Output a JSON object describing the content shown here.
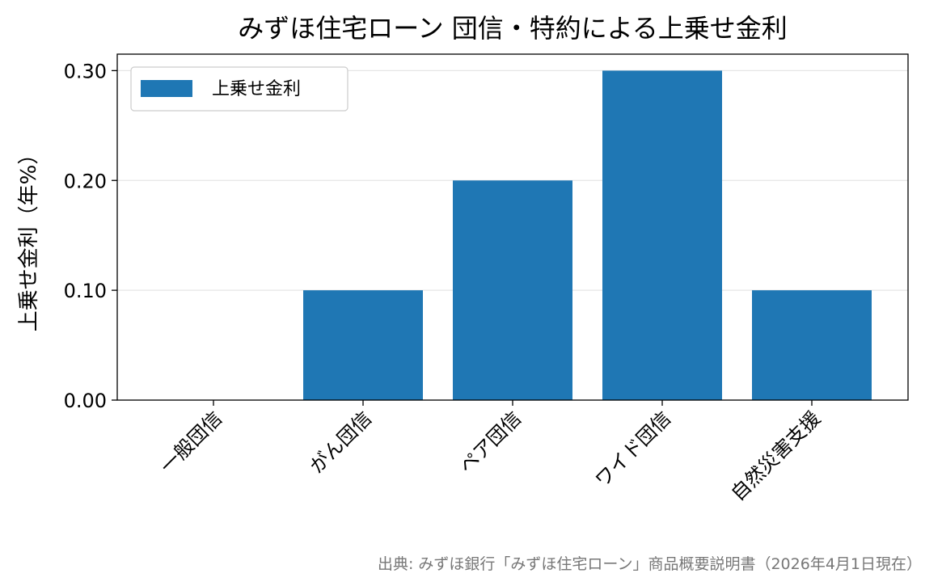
{
  "chart_data": {
    "type": "bar",
    "title": "みずほ住宅ローン 団信・特約による上乗せ金利",
    "xlabel": "",
    "ylabel": "上乗せ金利（年%）",
    "categories": [
      "一般団信",
      "がん団信",
      "ペア団信",
      "ワイド団信",
      "自然災害支援"
    ],
    "series": [
      {
        "name": "上乗せ金利",
        "values": [
          0.0,
          0.1,
          0.2,
          0.3,
          0.1
        ],
        "color": "#1f77b4"
      }
    ],
    "ylim": [
      0,
      0.315
    ],
    "yticks": [
      0.0,
      0.1,
      0.2,
      0.3
    ],
    "ytick_labels": [
      "0.00",
      "0.10",
      "0.20",
      "0.30"
    ],
    "grid": "horizontal",
    "legend_position": "top-left",
    "source_note": "出典: みずほ銀行「みずほ住宅ローン」商品概要説明書（2026年4月1日現在）"
  }
}
